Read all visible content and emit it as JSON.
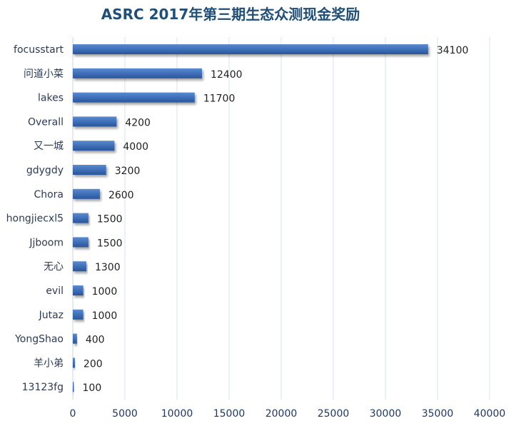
{
  "chart_data": {
    "type": "bar",
    "orientation": "horizontal",
    "title": "ASRC 2017年第三期生态众测现金奖励",
    "xlabel": "",
    "ylabel": "",
    "categories": [
      "focusstart",
      "问道小菜",
      "lakes",
      "Overall",
      "又一城",
      "gdygdy",
      "Chora",
      "hongjiecxl5",
      "Jjboom",
      "无心",
      "evil",
      "Jutaz",
      "YongShao",
      "羊小弟",
      "13123fg"
    ],
    "values": [
      34100,
      12400,
      11700,
      4200,
      4000,
      3200,
      2600,
      1500,
      1500,
      1300,
      1000,
      1000,
      400,
      200,
      100
    ],
    "xlim": [
      0,
      40000
    ],
    "xticks": [
      0,
      5000,
      10000,
      15000,
      20000,
      25000,
      30000,
      35000,
      40000
    ],
    "grid": true,
    "legend": "none",
    "colors": {
      "bar": "#3c6db5",
      "bar_dark": "#2a5599",
      "grid": "#d9e2f1",
      "title": "#1f4e79"
    }
  }
}
